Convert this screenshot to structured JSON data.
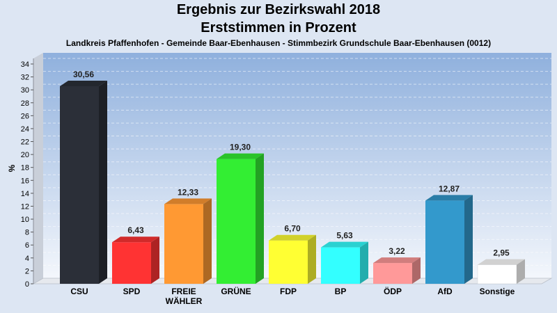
{
  "chart_data": {
    "type": "bar",
    "title": "Ergebnis zur Bezirkswahl 2018",
    "subtitle": "Erststimmen in Prozent",
    "caption": "Landkreis Pfaffenhofen - Gemeinde Baar-Ebenhausen - Stimmbezirk Grundschule Baar-Ebenhausen (0012)",
    "ylabel": "%",
    "xlabel": "",
    "ylim": [
      0,
      35
    ],
    "yticks": [
      0,
      2,
      4,
      6,
      8,
      10,
      12,
      14,
      16,
      18,
      20,
      22,
      24,
      26,
      28,
      30,
      32,
      34
    ],
    "grid": true,
    "categories": [
      "CSU",
      "SPD",
      "FREIE WÄHLER",
      "GRÜNE",
      "FDP",
      "BP",
      "ÖDP",
      "AfD",
      "Sonstige"
    ],
    "category_labels": [
      [
        "CSU"
      ],
      [
        "SPD"
      ],
      [
        "FREIE",
        "WÄHLER"
      ],
      [
        "GRÜNE"
      ],
      [
        "FDP"
      ],
      [
        "BP"
      ],
      [
        "ÖDP"
      ],
      [
        "AfD"
      ],
      [
        "Sonstige"
      ]
    ],
    "values": [
      30.56,
      6.43,
      12.33,
      19.3,
      6.7,
      5.63,
      3.22,
      12.87,
      2.95
    ],
    "value_labels": [
      "30,56",
      "6,43",
      "12,33",
      "19,30",
      "6,70",
      "5,63",
      "3,22",
      "12,87",
      "2,95"
    ],
    "colors": [
      "#2b2f38",
      "#ff3333",
      "#ff9933",
      "#33ee33",
      "#ffff33",
      "#33ffff",
      "#ff9999",
      "#3399cc",
      "#ffffff"
    ]
  }
}
